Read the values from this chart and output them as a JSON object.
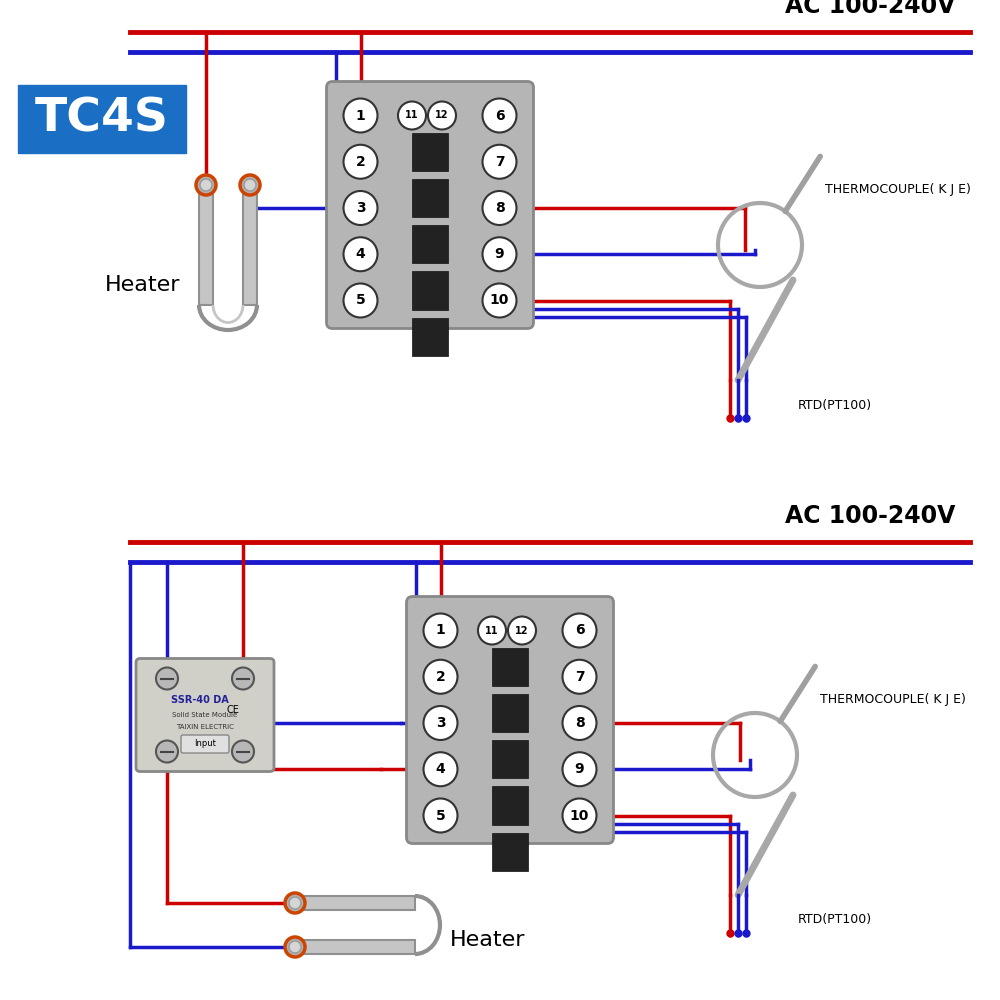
{
  "bg_color": "#ffffff",
  "red": "#cc0000",
  "blue": "#1a1acc",
  "gray_body": "#b8b8b8",
  "gray_fin": "#333333",
  "tc4s_bg": "#1a6fc4",
  "tc4s_text": "#ffffff",
  "ac_text": "AC 100-240V",
  "tc4s_label": "TC4S",
  "heater1_label": "Heater",
  "heater2_label": "Heater",
  "tc_label": "THERMOCOUPLE( K J E)",
  "rtd_label": "RTD(PT100)",
  "lw_wire": 2.5,
  "lw_thick": 3.5
}
